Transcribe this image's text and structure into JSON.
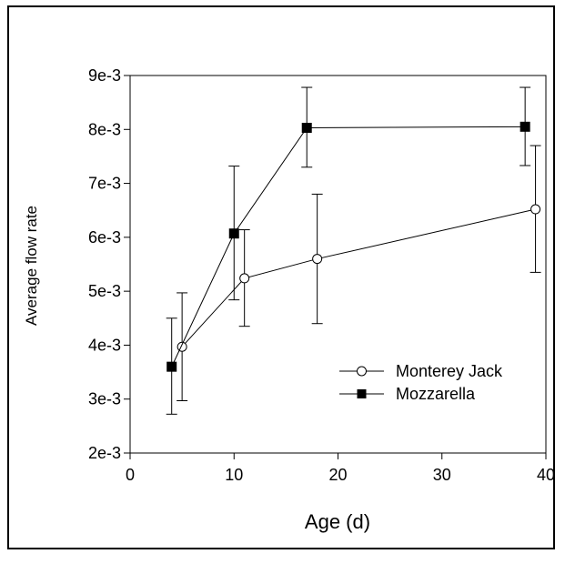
{
  "chart_data": {
    "type": "scatter",
    "xlabel": "Age (d)",
    "ylabel": "Average flow rate",
    "xlim": [
      0,
      40
    ],
    "ylim": [
      0.002,
      0.009
    ],
    "x_ticks": [
      0,
      10,
      20,
      30,
      40
    ],
    "x_tick_labels": [
      "0",
      "10",
      "20",
      "30",
      "40"
    ],
    "y_ticks": [
      0.002,
      0.003,
      0.004,
      0.005,
      0.006,
      0.007,
      0.008,
      0.009
    ],
    "y_tick_labels": [
      "2e-3",
      "3e-3",
      "4e-3",
      "5e-3",
      "6e-3",
      "7e-3",
      "8e-3",
      "9e-3"
    ],
    "grid": false,
    "legend_position": "bottom-right",
    "series": [
      {
        "name": "Monterey Jack",
        "marker": "open-circle",
        "color": "#000000",
        "x": [
          5,
          11,
          18,
          39
        ],
        "y": [
          0.00397,
          0.00524,
          0.0056,
          0.00652
        ],
        "error_low": [
          0.00297,
          0.00435,
          0.0044,
          0.00535
        ],
        "error_high": [
          0.00497,
          0.00614,
          0.0068,
          0.0077
        ]
      },
      {
        "name": "Mozzarella",
        "marker": "filled-square",
        "color": "#000000",
        "x": [
          4,
          10,
          17,
          38
        ],
        "y": [
          0.0036,
          0.00607,
          0.00803,
          0.00805
        ],
        "error_low": [
          0.00272,
          0.00484,
          0.0073,
          0.00733
        ],
        "error_high": [
          0.0045,
          0.00732,
          0.00878,
          0.00878
        ]
      }
    ]
  }
}
